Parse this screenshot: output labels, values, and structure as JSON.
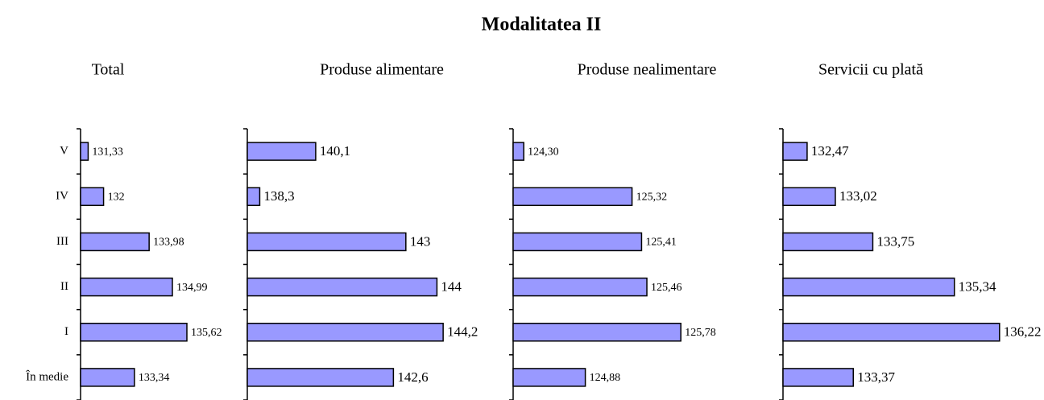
{
  "title": "Modalitatea II",
  "chart_data": [
    {
      "type": "bar",
      "title": "Total",
      "categories": [
        "V",
        "IV",
        "III",
        "II",
        "I",
        "În medie"
      ],
      "values": [
        131.33,
        132,
        133.98,
        134.99,
        135.62,
        133.34
      ],
      "value_labels": [
        "131,33",
        "132",
        "133,98",
        "134,99",
        "135,62",
        "133,34"
      ],
      "xlim": [
        131,
        138
      ],
      "color": "#9999ff"
    },
    {
      "type": "bar",
      "title": "Produse alimentare",
      "values": [
        140.1,
        138.3,
        143,
        144,
        144.2,
        142.6
      ],
      "value_labels": [
        "140,1",
        "138,3",
        "143",
        "144",
        "144,2",
        "142,6"
      ],
      "xlim": [
        137.9,
        145
      ],
      "color": "#9999ff"
    },
    {
      "type": "bar",
      "title": "Produse nealimentare",
      "values": [
        124.3,
        125.32,
        125.41,
        125.46,
        125.78,
        124.88
      ],
      "value_labels": [
        "124,30",
        "125,32",
        "125,41",
        "125,46",
        "125,78",
        "124,88"
      ],
      "xlim": [
        124.2,
        125.9
      ],
      "color": "#9999ff"
    },
    {
      "type": "bar",
      "title": "Servicii cu plată",
      "values": [
        132.47,
        133.02,
        133.75,
        135.34,
        136.22,
        133.37
      ],
      "value_labels": [
        "132,47",
        "133,02",
        "133,75",
        "135,34",
        "136,22",
        "133,37"
      ],
      "xlim": [
        132,
        136.6
      ],
      "color": "#9999ff"
    }
  ]
}
